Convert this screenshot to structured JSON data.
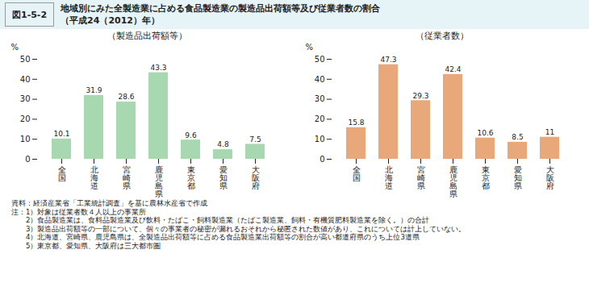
{
  "title": "地域別にみた全製造業に占める食品製造業の製造品出荷額等及び従業者数の割合",
  "subtitle": "（平成24（2012）年）",
  "annotations": [
    "図1-5-2",
    "資料：経済産業省「工業統計調査」を基に農林水産省で作成",
    "注：1）対象は従業者数４人以上の事業所",
    "　　2）食品製造業は、食料品製造業及び飲料・たばこ・飼料製造業（たばこ製造業、飼料・有機質肥料製造業を除く。）の合計",
    "　　3）製造品出荷額等の一部について、個々の事業者の秘密が漏れるおそれから秘匿された数値があり、これについては計上していない。",
    "　　4）北海道、宮崎県、鹿児島県は、全製造品出荷額等に占める食品製造業出荷額等の割合が高い都道府県のうち上位3道県",
    "　　5）東京都、愛知県、大阪府は三大都市圏"
  ],
  "chart_data": [
    {
      "type": "bar",
      "title": "（製造品出荷額等）",
      "categories": [
        "全\n国",
        "北\n海\n道",
        "宮\n崎\n県",
        "鹿\n児\n島\n県",
        "東\n京\n都",
        "愛\n知\n県",
        "大\n阪\n府"
      ],
      "values": [
        10.1,
        31.9,
        28.6,
        43.3,
        9.6,
        4.8,
        7.5
      ],
      "color": "#a8d8b0",
      "ylabel": "%",
      "ylim": [
        0,
        50
      ],
      "yticks": [
        0,
        10,
        20,
        30,
        40,
        50
      ],
      "grid": false,
      "data_labels": true
    },
    {
      "type": "bar",
      "title": "（従業者数）",
      "categories": [
        "全\n国",
        "北\n海\n道",
        "宮\n崎\n県",
        "鹿\n児\n島\n県",
        "東\n京\n都",
        "愛\n知\n県",
        "大\n阪\n府"
      ],
      "values": [
        15.8,
        47.3,
        29.3,
        42.4,
        10.6,
        8.5,
        11.0
      ],
      "color": "#e8a87a",
      "ylabel": "%",
      "ylim": [
        0,
        50
      ],
      "yticks": [
        0,
        10,
        20,
        30,
        40,
        50
      ],
      "grid": false,
      "data_labels": true
    }
  ]
}
